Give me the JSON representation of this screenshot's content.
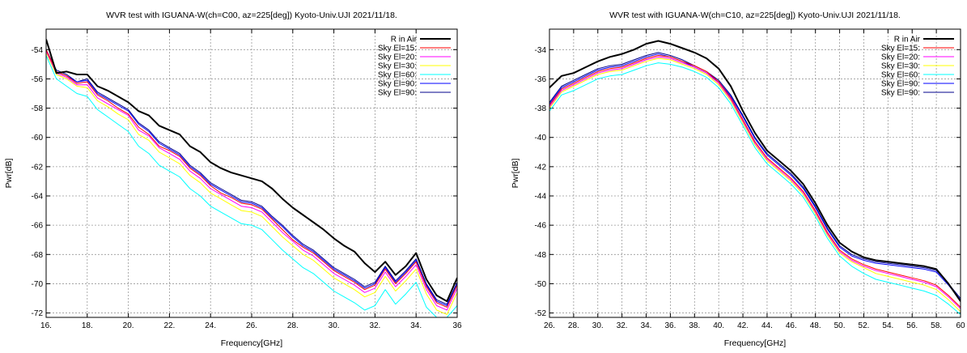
{
  "chart_data": [
    {
      "type": "line",
      "title": "WVR test with IGUANA-W(ch=C00, az=225[deg])  Kyoto-Univ.UJI 2021/11/18.",
      "xlabel": "Frequency[GHz]",
      "ylabel": "Pwr[dB]",
      "xlim": [
        16,
        36
      ],
      "ylim": [
        -72.3,
        -52.6
      ],
      "xticks": [
        16,
        18,
        20,
        22,
        24,
        26,
        28,
        30,
        32,
        34,
        36
      ],
      "xtick_labels": [
        "16.",
        "18.",
        "20.",
        "22.",
        "24.",
        "26.",
        "28.",
        "30.",
        "32.",
        "34.",
        "36"
      ],
      "yticks": [
        -54,
        -56,
        -58,
        -60,
        -62,
        -64,
        -66,
        -68,
        -70,
        -72
      ],
      "ytick_labels": [
        "-54",
        "-56",
        "-58",
        "-60",
        "-62",
        "-64",
        "-66",
        "-68",
        "-70",
        "-72"
      ],
      "grid": true,
      "legend_position": "top-right",
      "x": [
        16,
        16.5,
        17,
        17.5,
        18,
        18.5,
        19,
        19.5,
        20,
        20.5,
        21,
        21.5,
        22,
        22.5,
        23,
        23.5,
        24,
        24.5,
        25,
        25.5,
        26,
        26.5,
        27,
        27.5,
        28,
        28.5,
        29,
        29.5,
        30,
        30.5,
        31,
        31.5,
        32,
        32.5,
        33,
        33.5,
        34,
        34.5,
        35,
        35.5,
        36
      ],
      "series": [
        {
          "name": "R in Air",
          "color": "#000000",
          "width": 2,
          "values": [
            -53.3,
            -55.6,
            -55.5,
            -55.7,
            -55.7,
            -56.5,
            -56.8,
            -57.2,
            -57.6,
            -58.2,
            -58.5,
            -59.2,
            -59.5,
            -59.8,
            -60.6,
            -61.0,
            -61.7,
            -62.1,
            -62.4,
            -62.6,
            -62.8,
            -63.0,
            -63.5,
            -64.2,
            -64.8,
            -65.3,
            -65.8,
            -66.3,
            -66.9,
            -67.4,
            -67.8,
            -68.6,
            -69.2,
            -68.5,
            -69.4,
            -68.8,
            -67.9,
            -69.7,
            -70.8,
            -71.2,
            -69.6
          ]
        },
        {
          "name": "Sky  El=15:",
          "color": "#ff0000",
          "width": 1,
          "values": [
            -54.0,
            -55.5,
            -55.8,
            -56.3,
            -56.2,
            -57.1,
            -57.5,
            -58.0,
            -58.4,
            -59.3,
            -59.8,
            -60.6,
            -60.9,
            -61.3,
            -62.1,
            -62.6,
            -63.3,
            -63.8,
            -64.1,
            -64.5,
            -64.6,
            -64.9,
            -65.6,
            -66.3,
            -67.0,
            -67.5,
            -67.9,
            -68.5,
            -69.1,
            -69.5,
            -69.9,
            -70.4,
            -70.1,
            -69.0,
            -70.0,
            -69.3,
            -68.5,
            -70.2,
            -71.3,
            -71.6,
            -70.1
          ]
        },
        {
          "name": "Sky  El=20:",
          "color": "#ff00ff",
          "width": 1,
          "values": [
            -54.1,
            -55.6,
            -55.9,
            -56.4,
            -56.4,
            -57.3,
            -57.7,
            -58.1,
            -58.5,
            -59.5,
            -59.9,
            -60.7,
            -61.1,
            -61.5,
            -62.3,
            -62.8,
            -63.5,
            -63.9,
            -64.3,
            -64.7,
            -64.8,
            -65.1,
            -65.8,
            -66.5,
            -67.1,
            -67.7,
            -68.1,
            -68.7,
            -69.3,
            -69.7,
            -70.1,
            -70.6,
            -70.3,
            -69.2,
            -70.2,
            -69.5,
            -68.7,
            -70.4,
            -71.5,
            -71.8,
            -70.3
          ]
        },
        {
          "name": "Sky  El=30:",
          "color": "#ffff00",
          "width": 1,
          "values": [
            -54.2,
            -55.7,
            -56.0,
            -56.5,
            -56.6,
            -57.5,
            -57.9,
            -58.4,
            -58.8,
            -59.8,
            -60.2,
            -61.0,
            -61.4,
            -61.8,
            -62.6,
            -63.1,
            -63.8,
            -64.2,
            -64.6,
            -65.0,
            -65.1,
            -65.4,
            -66.1,
            -66.8,
            -67.4,
            -68.0,
            -68.4,
            -69.0,
            -69.6,
            -70.0,
            -70.4,
            -70.9,
            -70.6,
            -69.5,
            -70.5,
            -69.8,
            -69.0,
            -70.7,
            -71.8,
            -72.1,
            -70.6
          ]
        },
        {
          "name": "Sky  El=60:",
          "color": "#00ffff",
          "width": 1,
          "values": [
            -54.4,
            -56.0,
            -56.5,
            -57.0,
            -57.2,
            -58.1,
            -58.6,
            -59.1,
            -59.6,
            -60.6,
            -61.1,
            -61.9,
            -62.3,
            -62.7,
            -63.5,
            -64.0,
            -64.7,
            -65.1,
            -65.5,
            -65.9,
            -66.0,
            -66.3,
            -67.0,
            -67.7,
            -68.3,
            -68.9,
            -69.3,
            -69.9,
            -70.5,
            -70.9,
            -71.3,
            -71.8,
            -71.5,
            -70.4,
            -71.4,
            -70.7,
            -69.9,
            -71.6,
            -72.3,
            -72.3,
            -71.5
          ]
        },
        {
          "name": "Sky  El=90:",
          "color": "#0000ff",
          "width": 1,
          "values": [
            -54.0,
            -55.5,
            -55.8,
            -56.2,
            -56.1,
            -57.0,
            -57.4,
            -57.8,
            -58.2,
            -59.1,
            -59.6,
            -60.4,
            -60.8,
            -61.2,
            -62.0,
            -62.5,
            -63.2,
            -63.6,
            -64.0,
            -64.4,
            -64.5,
            -64.8,
            -65.5,
            -66.1,
            -66.8,
            -67.4,
            -67.8,
            -68.4,
            -69.0,
            -69.4,
            -69.8,
            -70.3,
            -70.0,
            -68.9,
            -69.9,
            -69.2,
            -68.4,
            -70.1,
            -71.2,
            -71.5,
            -70.0
          ]
        },
        {
          "name": "Sky  El=90:",
          "color": "#00008b",
          "width": 1,
          "values": [
            -54.0,
            -55.4,
            -55.7,
            -56.2,
            -56.0,
            -56.9,
            -57.3,
            -57.7,
            -58.1,
            -59.0,
            -59.5,
            -60.3,
            -60.7,
            -61.1,
            -61.9,
            -62.4,
            -63.1,
            -63.5,
            -63.9,
            -64.3,
            -64.4,
            -64.7,
            -65.4,
            -66.0,
            -66.7,
            -67.3,
            -67.7,
            -68.3,
            -68.9,
            -69.3,
            -69.7,
            -70.2,
            -69.9,
            -68.8,
            -69.8,
            -69.1,
            -68.3,
            -70.0,
            -71.1,
            -71.4,
            -69.9
          ]
        }
      ]
    },
    {
      "type": "line",
      "title": "WVR test with IGUANA-W(ch=C10, az=225[deg])  Kyoto-Univ.UJI 2021/11/18.",
      "xlabel": "Frequency[GHz]",
      "ylabel": "Pwr[dB]",
      "xlim": [
        26,
        60
      ],
      "ylim": [
        -52.3,
        -32.6
      ],
      "xticks": [
        26,
        28,
        30,
        32,
        34,
        36,
        38,
        40,
        42,
        44,
        46,
        48,
        50,
        52,
        54,
        56,
        58,
        60
      ],
      "xtick_labels": [
        "26.",
        "28.",
        "30.",
        "32.",
        "34.",
        "36.",
        "38.",
        "40.",
        "42.",
        "44.",
        "46.",
        "48.",
        "50.",
        "52.",
        "54.",
        "56.",
        "58.",
        "60"
      ],
      "yticks": [
        -34,
        -36,
        -38,
        -40,
        -42,
        -44,
        -46,
        -48,
        -50,
        -52
      ],
      "ytick_labels": [
        "-34",
        "-36",
        "-38",
        "-40",
        "-42",
        "-44",
        "-46",
        "-48",
        "-50",
        "-52"
      ],
      "grid": true,
      "legend_position": "top-right",
      "x": [
        26,
        27,
        28,
        29,
        30,
        31,
        32,
        33,
        34,
        35,
        36,
        37,
        38,
        39,
        40,
        41,
        42,
        43,
        44,
        45,
        46,
        47,
        48,
        49,
        50,
        51,
        52,
        53,
        54,
        55,
        56,
        57,
        58,
        59,
        60
      ],
      "series": [
        {
          "name": "R in Air",
          "color": "#000000",
          "width": 2,
          "values": [
            -36.6,
            -35.8,
            -35.6,
            -35.2,
            -34.8,
            -34.5,
            -34.3,
            -34.0,
            -33.6,
            -33.4,
            -33.6,
            -33.9,
            -34.2,
            -34.6,
            -35.3,
            -36.5,
            -38.2,
            -39.7,
            -40.9,
            -41.6,
            -42.3,
            -43.2,
            -44.5,
            -46.0,
            -47.2,
            -47.8,
            -48.2,
            -48.4,
            -48.5,
            -48.6,
            -48.7,
            -48.8,
            -49.0,
            -50.0,
            -51.2
          ]
        },
        {
          "name": "Sky  El=15:",
          "color": "#ff0000",
          "width": 1,
          "values": [
            -37.8,
            -36.7,
            -36.3,
            -35.9,
            -35.5,
            -35.3,
            -35.2,
            -34.9,
            -34.6,
            -34.4,
            -34.5,
            -34.8,
            -35.1,
            -35.5,
            -36.2,
            -37.3,
            -38.8,
            -40.3,
            -41.4,
            -42.1,
            -42.8,
            -43.7,
            -45.0,
            -46.5,
            -47.7,
            -48.3,
            -48.7,
            -49.0,
            -49.2,
            -49.4,
            -49.6,
            -49.8,
            -50.1,
            -50.8,
            -51.6
          ]
        },
        {
          "name": "Sky  El=20:",
          "color": "#ff00ff",
          "width": 1,
          "values": [
            -37.9,
            -36.8,
            -36.4,
            -36.0,
            -35.6,
            -35.4,
            -35.3,
            -35.0,
            -34.7,
            -34.5,
            -34.6,
            -34.9,
            -35.2,
            -35.6,
            -36.3,
            -37.4,
            -38.9,
            -40.4,
            -41.5,
            -42.2,
            -42.9,
            -43.8,
            -45.1,
            -46.6,
            -47.8,
            -48.4,
            -48.8,
            -49.1,
            -49.3,
            -49.5,
            -49.7,
            -49.9,
            -50.2,
            -50.9,
            -51.7
          ]
        },
        {
          "name": "Sky  El=30:",
          "color": "#ffff00",
          "width": 1,
          "values": [
            -38.0,
            -36.9,
            -36.5,
            -36.1,
            -35.7,
            -35.5,
            -35.4,
            -35.1,
            -34.8,
            -34.6,
            -34.7,
            -35.0,
            -35.3,
            -35.7,
            -36.4,
            -37.5,
            -39.0,
            -40.5,
            -41.6,
            -42.3,
            -43.0,
            -43.9,
            -45.2,
            -46.7,
            -47.9,
            -48.5,
            -48.9,
            -49.3,
            -49.5,
            -49.7,
            -49.9,
            -50.1,
            -50.4,
            -51.1,
            -51.9
          ]
        },
        {
          "name": "Sky  El=60:",
          "color": "#00ffff",
          "width": 1,
          "values": [
            -38.2,
            -37.1,
            -36.8,
            -36.4,
            -36.0,
            -35.8,
            -35.7,
            -35.4,
            -35.1,
            -34.9,
            -35.0,
            -35.2,
            -35.5,
            -35.9,
            -36.6,
            -37.7,
            -39.2,
            -40.7,
            -41.8,
            -42.5,
            -43.2,
            -44.1,
            -45.4,
            -46.9,
            -48.1,
            -48.8,
            -49.3,
            -49.7,
            -49.9,
            -50.1,
            -50.3,
            -50.5,
            -50.8,
            -51.4,
            -52.1
          ]
        },
        {
          "name": "Sky  El=90:",
          "color": "#0000ff",
          "width": 1,
          "values": [
            -37.7,
            -36.6,
            -36.2,
            -35.8,
            -35.4,
            -35.2,
            -35.1,
            -34.8,
            -34.5,
            -34.3,
            -34.5,
            -34.8,
            -35.2,
            -35.6,
            -36.2,
            -37.2,
            -38.6,
            -40.1,
            -41.2,
            -41.9,
            -42.6,
            -43.5,
            -44.8,
            -46.3,
            -47.5,
            -48.1,
            -48.4,
            -48.6,
            -48.7,
            -48.8,
            -48.9,
            -49.0,
            -49.2,
            -50.1,
            -51.1
          ]
        },
        {
          "name": "Sky  El=90:",
          "color": "#00008b",
          "width": 1,
          "values": [
            -37.6,
            -36.5,
            -36.1,
            -35.7,
            -35.3,
            -35.1,
            -35.0,
            -34.7,
            -34.4,
            -34.2,
            -34.4,
            -34.7,
            -35.1,
            -35.5,
            -36.1,
            -37.1,
            -38.5,
            -40.0,
            -41.1,
            -41.8,
            -42.5,
            -43.4,
            -44.7,
            -46.2,
            -47.4,
            -48.0,
            -48.3,
            -48.5,
            -48.6,
            -48.7,
            -48.8,
            -48.9,
            -49.1,
            -50.0,
            -51.0
          ]
        }
      ]
    }
  ]
}
